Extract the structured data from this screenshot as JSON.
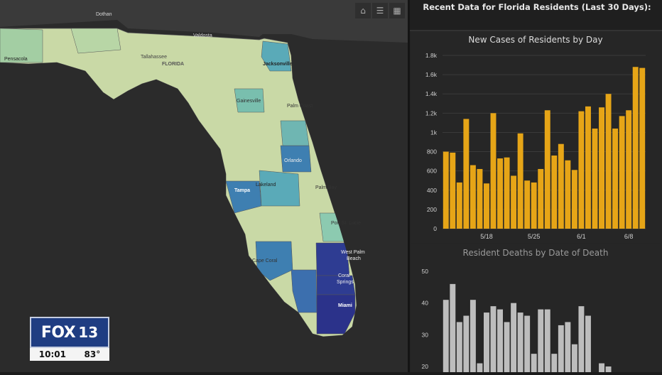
{
  "map": {
    "labels": {
      "dothan": "Dothan",
      "valdosta": "Valdosta",
      "tallahassee": "Tallahassee",
      "florida": "FLORIDA",
      "jacksonville": "Jacksonville",
      "gainesville": "Gainesville",
      "palm_coast": "Palm Coast",
      "orlando": "Orlando",
      "lakeland": "Lakeland",
      "tampa": "Tampa",
      "palm_bay": "Palm Bay",
      "port_st_lucie": "Port St. Lucie",
      "west_palm_beach_1": "West Palm",
      "west_palm_beach_2": "Beach",
      "cape_coral": "Cape Coral",
      "coral_springs_1": "Coral",
      "coral_springs_2": "Springs",
      "miami": "Miami",
      "pensacola": "Pensacola"
    },
    "tools": [
      "home-icon",
      "list-icon",
      "qr-grid-icon"
    ]
  },
  "panel": {
    "header_title": "Recent Data for Florida Residents (Last 30 Days):",
    "colors": {
      "cases_bar": "#e6a517",
      "deaths_bar": "#bdbdbd"
    }
  },
  "broadcast": {
    "channel_name": "FOX",
    "channel_number": "13",
    "time": "10:01",
    "temperature": "83°"
  },
  "chart_data": [
    {
      "type": "bar",
      "title": "New Cases of Residents by Day",
      "x_ticks": [
        "5/18",
        "5/25",
        "6/1",
        "6/8"
      ],
      "y_ticks": [
        "0",
        "200",
        "400",
        "600",
        "800",
        "1k",
        "1.2k",
        "1.4k",
        "1.6k",
        "1.8k"
      ],
      "ylim": [
        0,
        1800
      ],
      "values": [
        800,
        790,
        480,
        1140,
        660,
        620,
        470,
        1200,
        730,
        740,
        550,
        990,
        500,
        480,
        620,
        1230,
        760,
        880,
        710,
        610,
        1220,
        1270,
        1040,
        1260,
        1400,
        1040,
        1170,
        1230,
        1680,
        1670
      ],
      "grid": true
    },
    {
      "type": "bar",
      "title": "Resident Deaths by Date of Death",
      "y_ticks": [
        "20",
        "30",
        "40",
        "50"
      ],
      "ylim": [
        20,
        50
      ],
      "values": [
        41,
        46,
        34,
        36,
        41,
        21,
        37,
        39,
        38,
        34,
        40,
        37,
        36,
        24,
        38,
        38,
        24,
        33,
        34,
        27,
        39,
        36,
        17,
        21,
        20
      ],
      "grid": false
    }
  ]
}
